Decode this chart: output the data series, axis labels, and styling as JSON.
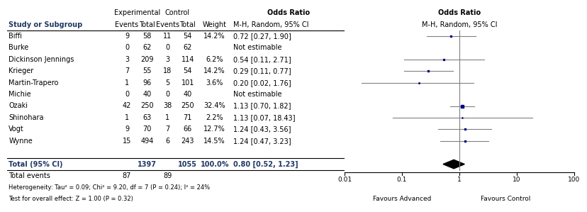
{
  "studies": [
    {
      "name": "Biffi",
      "or": 0.72,
      "ci_low": 0.27,
      "ci_high": 1.9,
      "weight": 14.2,
      "estimable": true
    },
    {
      "name": "Burke",
      "or": null,
      "ci_low": null,
      "ci_high": null,
      "weight": null,
      "estimable": false
    },
    {
      "name": "Dickinson Jennings",
      "or": 0.54,
      "ci_low": 0.11,
      "ci_high": 2.71,
      "weight": 6.2,
      "estimable": true
    },
    {
      "name": "Krieger",
      "or": 0.29,
      "ci_low": 0.11,
      "ci_high": 0.77,
      "weight": 14.2,
      "estimable": true
    },
    {
      "name": "Martin-Trapero",
      "or": 0.2,
      "ci_low": 0.02,
      "ci_high": 1.76,
      "weight": 3.6,
      "estimable": true
    },
    {
      "name": "Michie",
      "or": null,
      "ci_low": null,
      "ci_high": null,
      "weight": null,
      "estimable": false
    },
    {
      "name": "Ozaki",
      "or": 1.13,
      "ci_low": 0.7,
      "ci_high": 1.82,
      "weight": 32.4,
      "estimable": true
    },
    {
      "name": "Shinohara",
      "or": 1.13,
      "ci_low": 0.07,
      "ci_high": 18.43,
      "weight": 2.2,
      "estimable": true
    },
    {
      "name": "Vogt",
      "or": 1.24,
      "ci_low": 0.43,
      "ci_high": 3.56,
      "weight": 12.7,
      "estimable": true
    },
    {
      "name": "Wynne",
      "or": 1.24,
      "ci_low": 0.47,
      "ci_high": 3.23,
      "weight": 14.5,
      "estimable": true
    }
  ],
  "total": {
    "or": 0.8,
    "ci_low": 0.52,
    "ci_high": 1.23
  },
  "exp_events": [
    9,
    0,
    3,
    7,
    1,
    0,
    42,
    1,
    9,
    15
  ],
  "exp_totals": [
    58,
    62,
    209,
    55,
    96,
    40,
    250,
    63,
    70,
    494
  ],
  "ctrl_events": [
    11,
    0,
    3,
    18,
    5,
    0,
    38,
    1,
    7,
    6
  ],
  "ctrl_totals": [
    54,
    62,
    114,
    54,
    101,
    40,
    250,
    71,
    66,
    243
  ],
  "total_exp_total": 1397,
  "total_ctrl_total": 1055,
  "total_exp_events": 87,
  "total_ctrl_events": 89,
  "or_texts": [
    "0.72 [0.27, 1.90]",
    "Not estimable",
    "0.54 [0.11, 2.71]",
    "0.29 [0.11, 0.77]",
    "0.20 [0.02, 1.76]",
    "Not estimable",
    "1.13 [0.70, 1.82]",
    "1.13 [0.07, 18.43]",
    "1.24 [0.43, 3.56]",
    "1.24 [0.47, 3.23]"
  ],
  "total_or_text": "0.80 [0.52, 1.23]",
  "heterogeneity_text": "Heterogeneity: Tau² = 0.09; Chi² = 9.20, df = 7 (P = 0.24); I² = 24%",
  "overall_test_text": "Test for overall effect: Z = 1.00 (P = 0.32)",
  "study_color": "#00008B",
  "diamond_color": "#000000",
  "line_color": "#808080",
  "header_color": "#1F3864",
  "text_color": "#000000",
  "total_color": "#1F3864",
  "bg_color": "#ffffff",
  "xmin": 0.01,
  "xmax": 100,
  "xticks": [
    0.01,
    0.1,
    1,
    10,
    100
  ],
  "xtick_labels": [
    "0.01",
    "0.1",
    "1",
    "10",
    "100"
  ],
  "xlabel_left": "Favours Advanced",
  "xlabel_right": "Favours Control"
}
